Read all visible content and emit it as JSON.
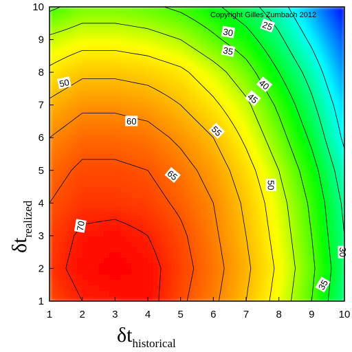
{
  "chart_data": {
    "type": "heatmap",
    "title": "",
    "copyright": "Copyright Gilles Zumbach 2012",
    "xlabel": {
      "symbol": "δt",
      "subscript": "historical"
    },
    "ylabel": {
      "symbol": "δt",
      "subscript": "realized"
    },
    "x_ticks": [
      1,
      2,
      3,
      4,
      5,
      6,
      7,
      8,
      9,
      10
    ],
    "y_ticks": [
      1,
      2,
      3,
      4,
      5,
      6,
      7,
      8,
      9,
      10
    ],
    "xlim": [
      1,
      10
    ],
    "ylim": [
      1,
      10
    ],
    "colormap": [
      "#0000ff",
      "#00ffff",
      "#00ff00",
      "#ffff00",
      "#ff8000",
      "#ff0000"
    ],
    "grid_x": [
      1,
      2,
      3,
      4,
      5,
      6,
      7,
      8,
      9,
      10
    ],
    "grid_y": [
      1,
      2,
      3,
      4,
      5,
      6,
      7,
      8,
      9,
      10
    ],
    "z": [
      [
        66,
        70,
        71,
        72,
        66,
        61,
        55,
        48,
        40,
        30
      ],
      [
        68,
        72,
        73,
        72,
        67,
        62,
        56,
        49,
        41,
        31
      ],
      [
        67,
        71,
        72,
        70,
        66,
        61,
        55,
        48,
        40,
        30
      ],
      [
        65,
        68,
        68,
        67,
        64,
        60,
        54,
        47,
        39,
        29
      ],
      [
        63,
        66,
        66,
        65,
        62,
        58,
        52,
        45,
        37,
        27
      ],
      [
        60,
        63,
        63,
        62,
        59,
        55,
        49,
        42,
        34,
        24
      ],
      [
        56,
        59,
        59,
        58,
        55,
        51,
        46,
        39,
        31,
        22
      ],
      [
        51,
        54,
        54,
        53,
        51,
        47,
        42,
        35,
        28,
        19
      ],
      [
        46,
        48,
        48,
        47,
        45,
        41,
        37,
        31,
        24,
        16
      ],
      [
        39,
        42,
        42,
        41,
        39,
        36,
        32,
        27,
        20,
        12
      ]
    ],
    "contour_levels": [
      25,
      30,
      35,
      40,
      45,
      50,
      55,
      60,
      65,
      70
    ],
    "contour_labels": [
      {
        "text": "25",
        "x": 7.65,
        "y": 9.42,
        "angle": 20
      },
      {
        "text": "30",
        "x": 6.45,
        "y": 9.22,
        "angle": 10
      },
      {
        "text": "35",
        "x": 6.45,
        "y": 8.65,
        "angle": 12
      },
      {
        "text": "40",
        "x": 7.55,
        "y": 7.62,
        "angle": 40
      },
      {
        "text": "45",
        "x": 7.2,
        "y": 7.2,
        "angle": 40
      },
      {
        "text": "50",
        "x": 1.45,
        "y": 7.67,
        "angle": -12
      },
      {
        "text": "50",
        "x": 7.75,
        "y": 4.55,
        "angle": 90
      },
      {
        "text": "55",
        "x": 6.1,
        "y": 6.2,
        "angle": 45
      },
      {
        "text": "60",
        "x": 3.5,
        "y": 6.5,
        "angle": 0
      },
      {
        "text": "65",
        "x": 4.75,
        "y": 4.85,
        "angle": 40
      },
      {
        "text": "70",
        "x": 1.95,
        "y": 3.3,
        "angle": -80
      },
      {
        "text": "35",
        "x": 9.35,
        "y": 1.5,
        "angle": -60
      },
      {
        "text": "30",
        "x": 9.95,
        "y": 2.5,
        "angle": 90
      }
    ]
  }
}
